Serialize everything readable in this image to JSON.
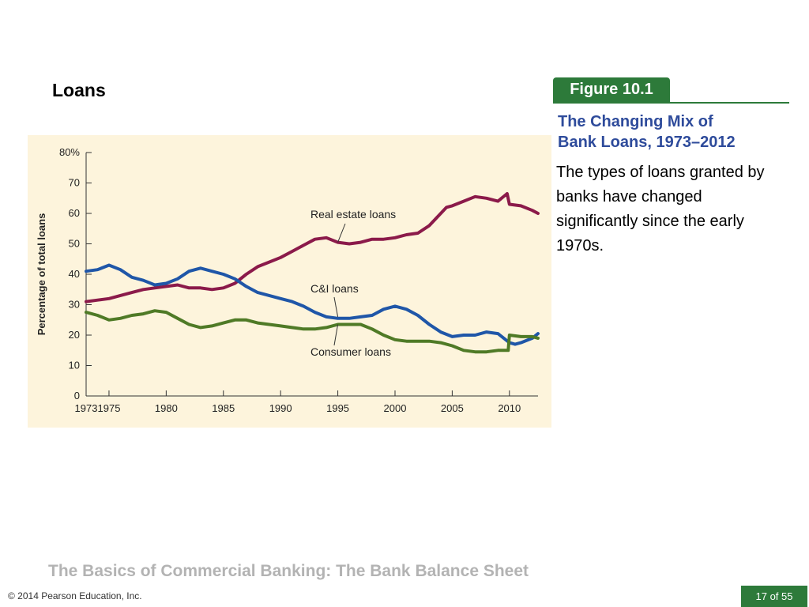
{
  "slide": {
    "title": "Loans",
    "footer_title": "The Basics of Commercial Banking: The Bank Balance Sheet",
    "copyright": "© 2014 Pearson Education, Inc.",
    "page": "17 of 55"
  },
  "figure": {
    "label": "Figure 10.1",
    "subtitle_line1": "The Changing Mix of",
    "subtitle_line2": "Bank Loans, 1973–2012",
    "body": [
      "The types of loans granted by",
      "banks have changed",
      "significantly since the early",
      "1970s."
    ]
  },
  "colors": {
    "accent_green": "#2d7a3a",
    "subtitle_blue": "#2e4b9b",
    "panel_bg": "#fdf4dc",
    "real_estate": "#8b1a4a",
    "ci": "#1f56a8",
    "consumer": "#4f7a26"
  },
  "chart_data": {
    "type": "line",
    "ylabel": "Percentage of total loans",
    "xlim": [
      1973,
      2012.5
    ],
    "ylim": [
      0,
      80
    ],
    "x_ticks": [
      1973,
      1975,
      1980,
      1985,
      1990,
      1995,
      2000,
      2005,
      2010
    ],
    "y_ticks": [
      0,
      10,
      20,
      30,
      40,
      50,
      60,
      70,
      80
    ],
    "y_tick_labels": [
      "0",
      "10",
      "20",
      "30",
      "40",
      "50",
      "60",
      "70",
      "80%"
    ],
    "annotations": [
      {
        "text": "Real estate loans",
        "series": 0
      },
      {
        "text": "C&I loans",
        "series": 1
      },
      {
        "text": "Consumer loans",
        "series": 2
      }
    ],
    "series": [
      {
        "name": "Real estate loans",
        "x": [
          1973,
          1974,
          1975,
          1976,
          1977,
          1978,
          1979,
          1980,
          1981,
          1982,
          1983,
          1984,
          1985,
          1986,
          1987,
          1988,
          1989,
          1990,
          1991,
          1992,
          1993,
          1994,
          1995,
          1996,
          1997,
          1998,
          1999,
          2000,
          2001,
          2002,
          2003,
          2004,
          2004.5,
          2005,
          2006,
          2007,
          2008,
          2009,
          2009.8,
          2010,
          2011,
          2012,
          2012.5
        ],
        "y": [
          31,
          31.5,
          32,
          33,
          34,
          35,
          35.5,
          36,
          36.5,
          35.5,
          35.5,
          35,
          35.5,
          37,
          40,
          42.5,
          44,
          45.5,
          47.5,
          49.5,
          51.5,
          52,
          50.5,
          50,
          50.5,
          51.5,
          51.5,
          52,
          53,
          53.5,
          56,
          60,
          62,
          62.5,
          64,
          65.5,
          65,
          64,
          66.5,
          63,
          62.5,
          61,
          60
        ]
      },
      {
        "name": "C&I loans",
        "x": [
          1973,
          1974,
          1975,
          1976,
          1977,
          1978,
          1979,
          1980,
          1981,
          1982,
          1983,
          1984,
          1985,
          1986,
          1987,
          1988,
          1989,
          1990,
          1991,
          1992,
          1993,
          1994,
          1995,
          1996,
          1997,
          1998,
          1999,
          2000,
          2001,
          2002,
          2003,
          2004,
          2005,
          2006,
          2007,
          2008,
          2009,
          2010,
          2010.5,
          2011,
          2012,
          2012.5
        ],
        "y": [
          41,
          41.5,
          43,
          41.5,
          39,
          38,
          36.5,
          37,
          38.5,
          41,
          42,
          41,
          40,
          38.5,
          36,
          34,
          33,
          32,
          31,
          29.5,
          27.5,
          26,
          25.5,
          25.5,
          26,
          26.5,
          28.5,
          29.5,
          28.5,
          26.5,
          23.5,
          21,
          19.5,
          20,
          20,
          21,
          20.5,
          17.5,
          17,
          17.5,
          19,
          20.5
        ]
      },
      {
        "name": "Consumer loans",
        "x": [
          1973,
          1974,
          1975,
          1976,
          1977,
          1978,
          1979,
          1980,
          1981,
          1982,
          1983,
          1984,
          1985,
          1986,
          1987,
          1988,
          1989,
          1990,
          1991,
          1992,
          1993,
          1994,
          1995,
          1996,
          1997,
          1998,
          1999,
          2000,
          2001,
          2002,
          2003,
          2004,
          2005,
          2006,
          2007,
          2008,
          2009,
          2009.9,
          2010,
          2011,
          2012,
          2012.5
        ],
        "y": [
          27.5,
          26.5,
          25,
          25.5,
          26.5,
          27,
          28,
          27.5,
          25.5,
          23.5,
          22.5,
          23,
          24,
          25,
          25,
          24,
          23.5,
          23,
          22.5,
          22,
          22,
          22.5,
          23.5,
          23.5,
          23.5,
          22,
          20,
          18.5,
          18,
          18,
          18,
          17.5,
          16.5,
          15,
          14.5,
          14.5,
          15,
          15,
          20,
          19.5,
          19.5,
          19
        ]
      }
    ]
  }
}
